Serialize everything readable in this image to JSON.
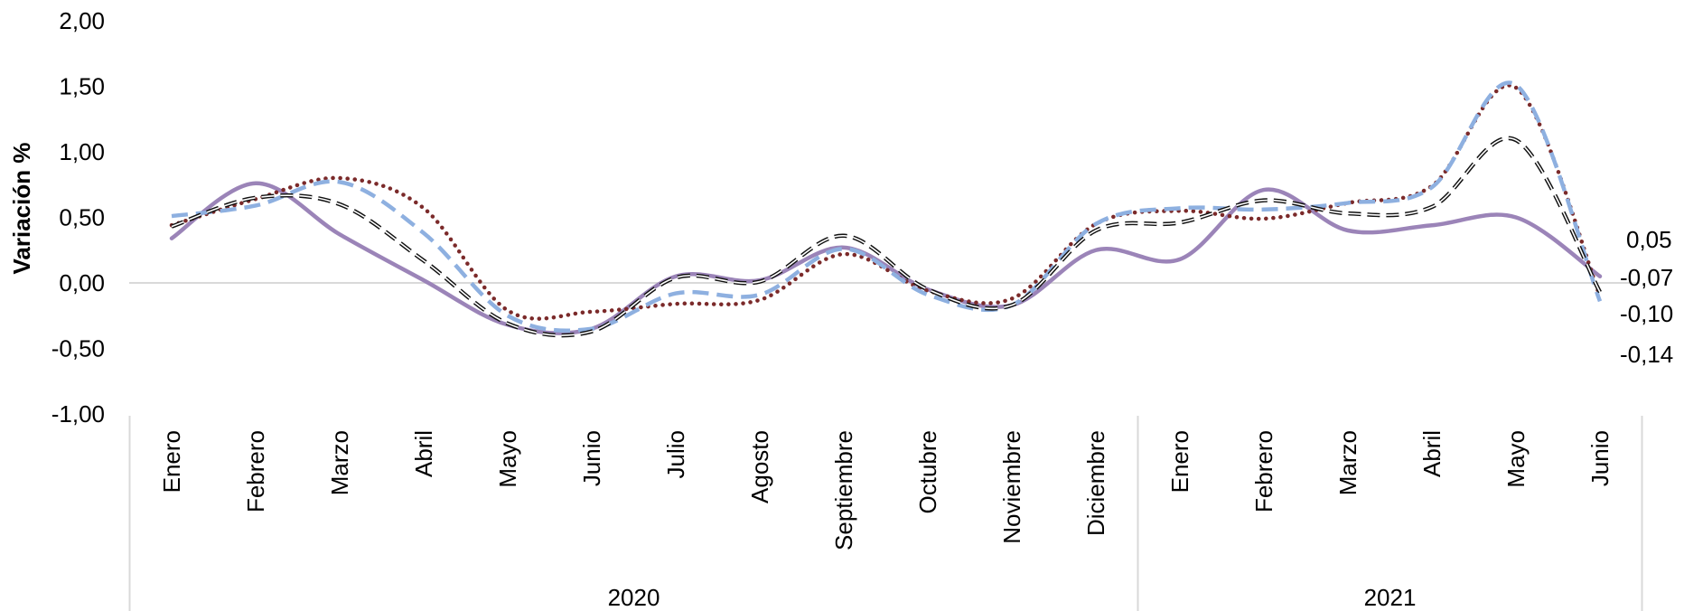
{
  "chart_data": {
    "type": "line",
    "ylabel": "Variación  %",
    "ylim": [
      -1.0,
      2.0
    ],
    "yticks": [
      "2,00",
      "1,50",
      "1,00",
      "0,50",
      "0,00",
      "-0,50",
      "-1,00"
    ],
    "categories": [
      "Enero",
      "Febrero",
      "Marzo",
      "Abril",
      "Mayo",
      "Junio",
      "Julio",
      "Agosto",
      "Septiembre",
      "Octubre",
      "Noviembre",
      "Diciembre",
      "Enero",
      "Febrero",
      "Marzo",
      "Abril",
      "Mayo",
      "Junio"
    ],
    "groups": [
      {
        "label": "2020",
        "count": 12
      },
      {
        "label": "2021",
        "count": 6
      }
    ],
    "grid": false,
    "series": [
      {
        "values": [
          0.34,
          0.76,
          0.37,
          0.02,
          -0.32,
          -0.35,
          0.05,
          0.02,
          0.27,
          -0.05,
          -0.17,
          0.25,
          0.18,
          0.71,
          0.4,
          0.44,
          0.5,
          0.05
        ],
        "color": "#9b84b8",
        "style": "solid"
      },
      {
        "values": [
          0.44,
          0.64,
          0.8,
          0.57,
          -0.21,
          -0.22,
          -0.16,
          -0.13,
          0.22,
          -0.06,
          -0.12,
          0.45,
          0.55,
          0.49,
          0.61,
          0.74,
          1.49,
          -0.1
        ],
        "color": "#7b2a2a",
        "style": "dotted"
      },
      {
        "values": [
          0.51,
          0.59,
          0.77,
          0.38,
          -0.25,
          -0.35,
          -0.08,
          -0.09,
          0.26,
          -0.09,
          -0.17,
          0.45,
          0.57,
          0.56,
          0.61,
          0.73,
          1.51,
          -0.14
        ],
        "color": "#8eb0e0",
        "style": "dashed"
      },
      {
        "values": [
          0.43,
          0.65,
          0.6,
          0.17,
          -0.31,
          -0.37,
          0.04,
          0.01,
          0.36,
          -0.05,
          -0.17,
          0.4,
          0.46,
          0.63,
          0.53,
          0.58,
          1.09,
          -0.07
        ],
        "color": "#111111",
        "style": "double-dashed"
      }
    ],
    "end_labels": [
      "0,05",
      "-0,07",
      "-0,10",
      "-0,14"
    ]
  }
}
